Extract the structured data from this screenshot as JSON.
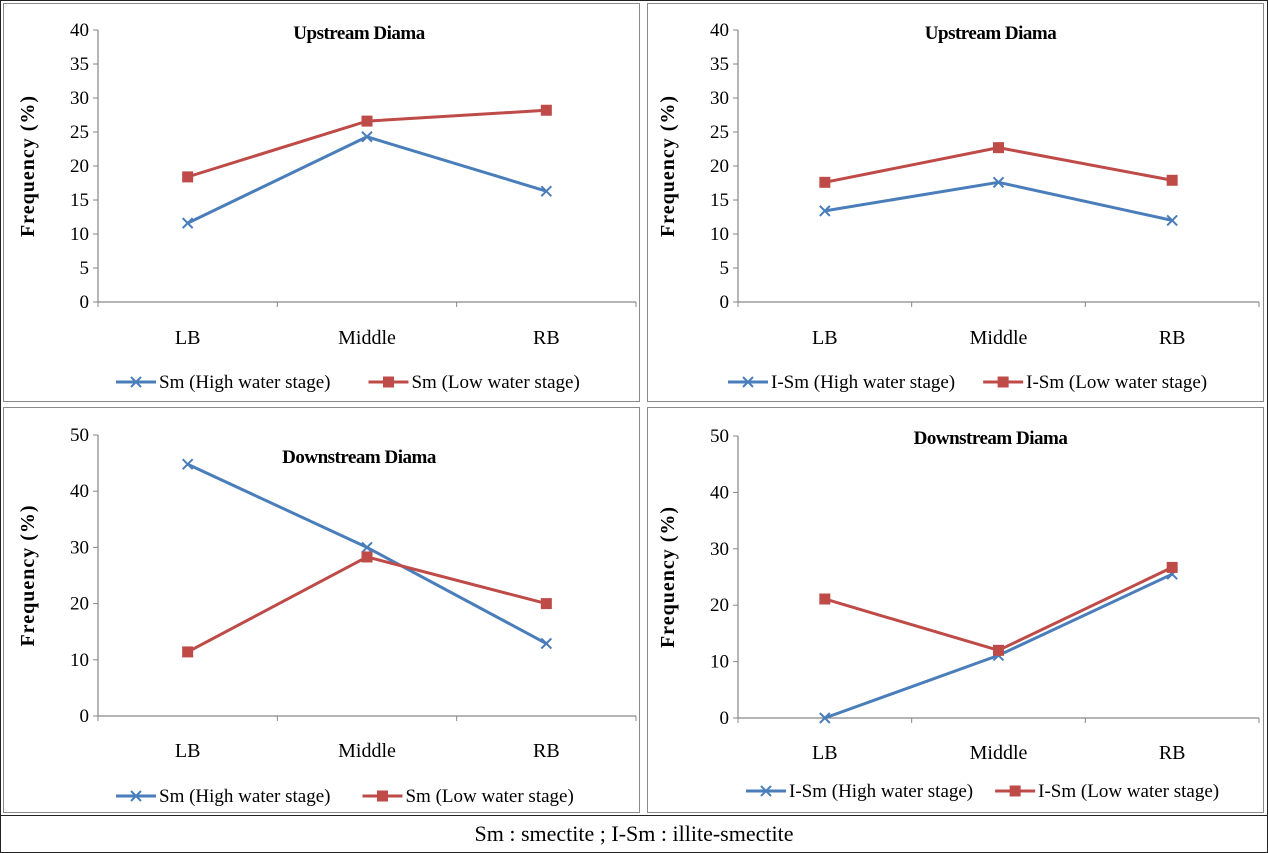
{
  "caption": "Sm : smectite ; I-Sm : illite-smectite",
  "colors": {
    "high": "#4a7ebb",
    "low": "#be4b48"
  },
  "chart_data": [
    {
      "type": "line",
      "title": "Upstream Diama",
      "ylabel": "Frequency (%)",
      "xlabel": "",
      "categories": [
        "LB",
        "Middle",
        "RB"
      ],
      "ylim": [
        0,
        40
      ],
      "yticks": [
        0,
        5,
        10,
        15,
        20,
        25,
        30,
        35,
        40
      ],
      "grid": false,
      "legend": "bottom",
      "series": [
        {
          "name": "Sm (High water stage)",
          "marker": "x",
          "color": "#4a7ebb",
          "values": [
            11.6,
            24.3,
            16.3
          ]
        },
        {
          "name": "Sm (Low water stage)",
          "marker": "square",
          "color": "#be4b48",
          "values": [
            18.4,
            26.6,
            28.2
          ]
        }
      ]
    },
    {
      "type": "line",
      "title": "Upstream Diama",
      "ylabel": "Frequency (%)",
      "xlabel": "",
      "categories": [
        "LB",
        "Middle",
        "RB"
      ],
      "ylim": [
        0,
        40
      ],
      "yticks": [
        0,
        5,
        10,
        15,
        20,
        25,
        30,
        35,
        40
      ],
      "grid": false,
      "legend": "bottom",
      "series": [
        {
          "name": "I-Sm (High water stage)",
          "marker": "x",
          "color": "#4a7ebb",
          "values": [
            13.4,
            17.6,
            12.0
          ]
        },
        {
          "name": "I-Sm (Low  water stage)",
          "marker": "square",
          "color": "#be4b48",
          "values": [
            17.6,
            22.7,
            17.9
          ]
        }
      ]
    },
    {
      "type": "line",
      "title": "Downstream Diama",
      "ylabel": "Frequency (%)",
      "xlabel": "",
      "categories": [
        "LB",
        "Middle",
        "RB"
      ],
      "ylim": [
        0,
        50
      ],
      "yticks": [
        0,
        10,
        20,
        30,
        40,
        50
      ],
      "grid": false,
      "legend": "bottom",
      "series": [
        {
          "name": "Sm (High water stage)",
          "marker": "x",
          "color": "#4a7ebb",
          "values": [
            44.8,
            30.0,
            12.9
          ]
        },
        {
          "name": "Sm (Low water stage)",
          "marker": "square",
          "color": "#be4b48",
          "values": [
            11.4,
            28.3,
            20.0
          ]
        }
      ]
    },
    {
      "type": "line",
      "title": "Downstream Diama",
      "ylabel": "Frequency (%)",
      "xlabel": "",
      "categories": [
        "LB",
        "Middle",
        "RB"
      ],
      "ylim": [
        0,
        50
      ],
      "yticks": [
        0,
        10,
        20,
        30,
        40,
        50
      ],
      "grid": false,
      "legend": "bottom",
      "series": [
        {
          "name": "I-Sm (High water stage)",
          "marker": "x",
          "color": "#4a7ebb",
          "values": [
            0.0,
            11.1,
            25.5
          ]
        },
        {
          "name": "I-Sm (Low water stage)",
          "marker": "square",
          "color": "#be4b48",
          "values": [
            21.1,
            12.0,
            26.7
          ]
        }
      ]
    }
  ]
}
